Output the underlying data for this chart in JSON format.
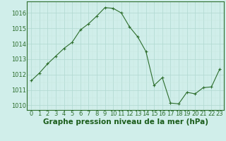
{
  "x": [
    0,
    1,
    2,
    3,
    4,
    5,
    6,
    7,
    8,
    9,
    10,
    11,
    12,
    13,
    14,
    15,
    16,
    17,
    18,
    19,
    20,
    21,
    22,
    23
  ],
  "y": [
    1011.6,
    1012.1,
    1012.7,
    1013.2,
    1013.7,
    1014.1,
    1014.9,
    1015.3,
    1015.8,
    1016.35,
    1016.3,
    1016.0,
    1015.1,
    1014.45,
    1013.5,
    1011.3,
    1011.8,
    1010.15,
    1010.1,
    1010.85,
    1010.75,
    1011.15,
    1011.2,
    1012.35
  ],
  "line_color": "#2d6e2d",
  "marker_color": "#2d6e2d",
  "bg_color": "#d0eeea",
  "grid_color_major": "#b0d8d0",
  "grid_color_minor": "#c8e8e0",
  "xlabel": "Graphe pression niveau de la mer (hPa)",
  "xlabel_color": "#1a5c1a",
  "tick_color": "#2d6e2d",
  "ylim": [
    1009.7,
    1016.75
  ],
  "yticks": [
    1010,
    1011,
    1012,
    1013,
    1014,
    1015,
    1016
  ],
  "xticks": [
    0,
    1,
    2,
    3,
    4,
    5,
    6,
    7,
    8,
    9,
    10,
    11,
    12,
    13,
    14,
    15,
    16,
    17,
    18,
    19,
    20,
    21,
    22,
    23
  ],
  "xlabel_fontsize": 7.5,
  "tick_fontsize": 6.0
}
